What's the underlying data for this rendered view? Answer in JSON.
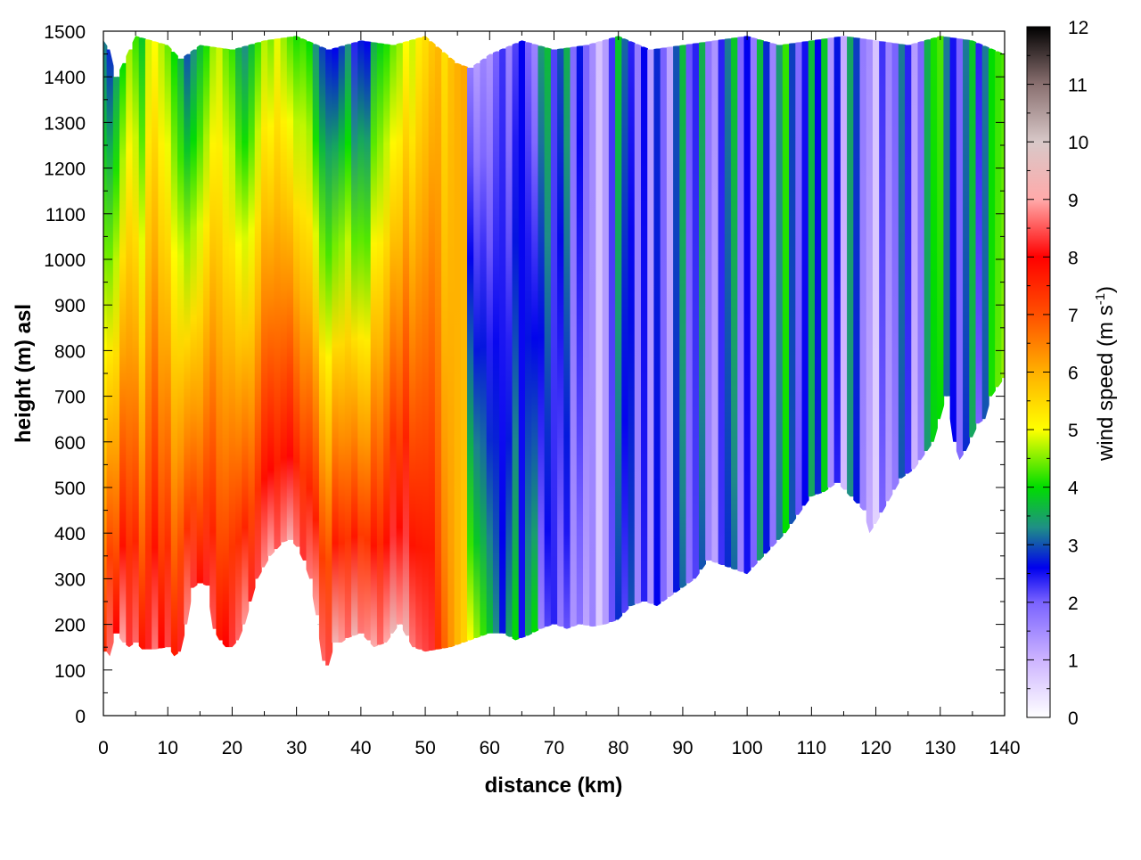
{
  "chart_data": {
    "type": "heatmap",
    "title": "",
    "xlabel": "distance (km)",
    "ylabel": "height (m) asl",
    "xlim": [
      0,
      140
    ],
    "ylim": [
      0,
      1500
    ],
    "x_ticks": [
      "0",
      "10",
      "20",
      "30",
      "40",
      "50",
      "60",
      "70",
      "80",
      "90",
      "100",
      "110",
      "120",
      "130",
      "140"
    ],
    "y_ticks": [
      "0",
      "100",
      "200",
      "300",
      "400",
      "500",
      "600",
      "700",
      "800",
      "900",
      "1000",
      "1100",
      "1200",
      "1300",
      "1400",
      "1500"
    ],
    "grid": true,
    "colorbar": {
      "label_main": "wind speed (m s",
      "label_sup": "-1",
      "label_close": ")",
      "range": [
        0,
        12
      ],
      "ticks": [
        "0",
        "1",
        "2",
        "3",
        "4",
        "5",
        "6",
        "7",
        "8",
        "9",
        "10",
        "11",
        "12"
      ],
      "stops": [
        {
          "v": 0,
          "c": "#ffffff"
        },
        {
          "v": 1,
          "c": "#cdb4ff"
        },
        {
          "v": 2,
          "c": "#7a63ff"
        },
        {
          "v": 2.6,
          "c": "#0000ee"
        },
        {
          "v": 3.3,
          "c": "#1f8f86"
        },
        {
          "v": 4,
          "c": "#00dd00"
        },
        {
          "v": 5,
          "c": "#ffff00"
        },
        {
          "v": 6,
          "c": "#ffb000"
        },
        {
          "v": 7,
          "c": "#ff5000"
        },
        {
          "v": 8,
          "c": "#ff0000"
        },
        {
          "v": 9,
          "c": "#ffaaaa"
        },
        {
          "v": 10,
          "c": "#d8c8c8"
        },
        {
          "v": 11,
          "c": "#8a7070"
        },
        {
          "v": 12,
          "c": "#000000"
        }
      ]
    },
    "terrain_profile": {
      "distance_km": [
        0,
        0.5,
        1,
        2,
        3,
        4,
        5,
        6,
        8,
        10,
        11,
        12,
        13,
        14,
        15,
        16,
        17,
        18,
        19,
        20,
        21,
        22,
        24,
        26,
        28,
        29,
        30,
        31,
        32,
        33,
        34,
        34.5,
        35,
        36,
        37,
        38,
        40,
        42,
        44,
        46,
        48,
        50,
        52,
        54,
        56,
        58,
        60,
        62,
        64,
        66,
        68,
        70,
        72,
        74,
        76,
        78,
        80,
        82,
        84,
        86,
        88,
        90,
        92,
        94,
        96,
        98,
        100,
        102,
        104,
        106,
        108,
        110,
        112,
        114,
        116,
        118,
        119,
        120,
        122,
        124,
        126,
        128,
        129,
        130,
        131,
        132,
        133,
        134,
        135,
        136,
        137,
        138,
        139,
        140
      ],
      "ground_height_m": [
        140,
        140,
        130,
        180,
        160,
        150,
        160,
        145,
        145,
        150,
        130,
        140,
        200,
        280,
        290,
        285,
        190,
        165,
        150,
        150,
        165,
        200,
        300,
        350,
        380,
        385,
        370,
        340,
        300,
        220,
        120,
        100,
        110,
        160,
        160,
        170,
        180,
        150,
        160,
        200,
        150,
        140,
        145,
        150,
        160,
        170,
        180,
        180,
        165,
        175,
        190,
        200,
        190,
        200,
        195,
        200,
        210,
        240,
        250,
        240,
        260,
        280,
        300,
        340,
        330,
        320,
        310,
        340,
        370,
        400,
        440,
        480,
        490,
        510,
        480,
        450,
        400,
        420,
        470,
        520,
        540,
        580,
        600,
        650,
        700,
        600,
        560,
        580,
        610,
        640,
        650,
        700,
        720,
        740
      ]
    },
    "top_boundary": {
      "distance_km": [
        0,
        1,
        2,
        5,
        10,
        12,
        15,
        20,
        25,
        30,
        35,
        40,
        45,
        50,
        55,
        57,
        60,
        65,
        70,
        75,
        80,
        85,
        90,
        95,
        100,
        105,
        110,
        115,
        120,
        125,
        130,
        135,
        140
      ],
      "data_top_m": [
        1480,
        1460,
        1400,
        1490,
        1470,
        1440,
        1470,
        1460,
        1480,
        1490,
        1460,
        1480,
        1470,
        1490,
        1430,
        1420,
        1450,
        1480,
        1460,
        1470,
        1490,
        1460,
        1470,
        1480,
        1490,
        1470,
        1480,
        1490,
        1480,
        1470,
        1490,
        1480,
        1450
      ]
    },
    "wind_columns": {
      "distance_km": [
        0,
        1,
        2,
        3,
        4,
        5,
        6,
        7,
        8,
        9,
        10,
        11,
        12,
        13,
        14,
        15,
        16,
        17,
        18,
        19,
        20,
        21,
        22,
        23,
        24,
        25,
        26,
        27,
        28,
        29,
        30,
        31,
        32,
        33,
        34,
        35,
        36,
        37,
        38,
        39,
        40,
        41,
        42,
        43,
        44,
        45,
        46,
        47,
        48,
        49,
        50,
        51,
        52,
        53,
        54,
        55,
        56,
        57,
        58,
        59,
        60,
        61,
        62,
        63,
        64,
        65,
        66,
        67,
        68,
        69,
        70,
        71,
        72,
        73,
        74,
        75,
        76,
        77,
        78,
        79,
        80,
        81,
        82,
        83,
        84,
        85,
        86,
        87,
        88,
        89,
        90,
        91,
        92,
        93,
        94,
        95,
        96,
        97,
        98,
        99,
        100,
        101,
        102,
        103,
        104,
        105,
        106,
        107,
        108,
        109,
        110,
        111,
        112,
        113,
        114,
        115,
        116,
        117,
        118,
        119,
        120,
        121,
        122,
        123,
        124,
        125,
        126,
        127,
        128,
        129,
        130,
        131,
        132,
        133,
        134,
        135,
        136,
        137,
        138,
        139,
        140
      ],
      "surface_speed_ms": [
        7.5,
        8.6,
        8.0,
        9.0,
        8.3,
        8.6,
        7.8,
        8.2,
        8.7,
        8.0,
        8.4,
        7.7,
        8.2,
        8.8,
        8.3,
        7.9,
        8.2,
        8.5,
        7.8,
        8.0,
        8.3,
        8.6,
        8.9,
        8.2,
        8.4,
        8.8,
        9.0,
        8.5,
        8.8,
        9.2,
        8.7,
        8.3,
        8.7,
        9.0,
        8.6,
        8.4,
        9.3,
        8.9,
        8.6,
        9.4,
        8.7,
        8.8,
        9.1,
        8.6,
        9.0,
        9.5,
        8.9,
        9.4,
        8.7,
        8.5,
        8.4,
        8.3,
        7.4,
        6.8,
        6.3,
        5.9,
        5.6,
        5.0,
        4.6,
        4.2,
        3.8,
        3.3,
        2.7,
        3.5,
        4.0,
        2.5,
        3.6,
        4.0,
        1.6,
        2.2,
        2.4,
        1.7,
        2.1,
        1.4,
        1.8,
        1.2,
        1.6,
        0.7,
        1.3,
        2.1,
        2.8,
        2.2,
        3.0,
        1.6,
        2.4,
        1.4,
        2.6,
        1.9,
        1.3,
        2.7,
        3.1,
        1.8,
        2.2,
        3.0,
        1.6,
        1.2,
        2.3,
        2.8,
        3.1,
        1.6,
        2.5,
        2.0,
        3.4,
        2.7,
        1.8,
        3.2,
        4.0,
        3.0,
        2.1,
        2.6,
        3.5,
        2.8,
        3.9,
        1.5,
        2.4,
        0.9,
        3.3,
        2.7,
        1.6,
        1.1,
        0.6,
        2.0,
        1.3,
        1.7,
        3.0,
        2.3,
        1.0,
        1.6,
        3.4,
        3.9,
        4.0,
        3.1,
        2.6,
        1.9,
        2.8,
        3.5,
        2.0,
        3.0,
        4.1,
        4.4,
        4.6
      ],
      "top_speed_ms": [
        3.2,
        2.8,
        3.5,
        4.0,
        4.6,
        4.2,
        3.8,
        4.8,
        5.0,
        4.7,
        4.4,
        4.0,
        3.6,
        3.0,
        3.3,
        3.7,
        4.1,
        4.6,
        4.8,
        4.4,
        4.2,
        3.6,
        3.3,
        3.7,
        4.2,
        4.7,
        4.5,
        4.9,
        4.6,
        4.3,
        4.1,
        4.2,
        4.0,
        3.3,
        2.9,
        2.7,
        2.6,
        2.9,
        3.3,
        2.4,
        2.7,
        2.6,
        3.6,
        3.9,
        4.1,
        4.4,
        4.6,
        5.0,
        4.8,
        5.2,
        5.4,
        5.7,
        5.9,
        5.4,
        5.8,
        6.0,
        6.1,
        1.7,
        1.3,
        1.6,
        1.4,
        2.0,
        2.3,
        1.6,
        2.2,
        2.6,
        2.0,
        1.6,
        3.4,
        3.7,
        2.2,
        3.0,
        3.6,
        1.9,
        2.7,
        2.0,
        1.5,
        0.8,
        1.3,
        2.3,
        3.8,
        3.1,
        2.4,
        1.7,
        2.6,
        1.3,
        2.8,
        2.0,
        1.2,
        3.0,
        3.7,
        2.1,
        2.4,
        3.6,
        1.8,
        1.4,
        2.4,
        3.2,
        3.8,
        2.0,
        2.6,
        1.7,
        3.7,
        2.8,
        1.6,
        3.4,
        4.2,
        2.9,
        1.9,
        2.5,
        3.7,
        2.6,
        3.8,
        1.4,
        2.7,
        1.1,
        3.5,
        2.9,
        1.7,
        1.5,
        0.8,
        2.3,
        1.6,
        2.0,
        3.2,
        2.4,
        1.3,
        2.0,
        3.6,
        4.1,
        4.3,
        3.2,
        2.5,
        2.0,
        3.2,
        3.8,
        2.4,
        3.2,
        4.0,
        4.2,
        4.3
      ]
    }
  }
}
